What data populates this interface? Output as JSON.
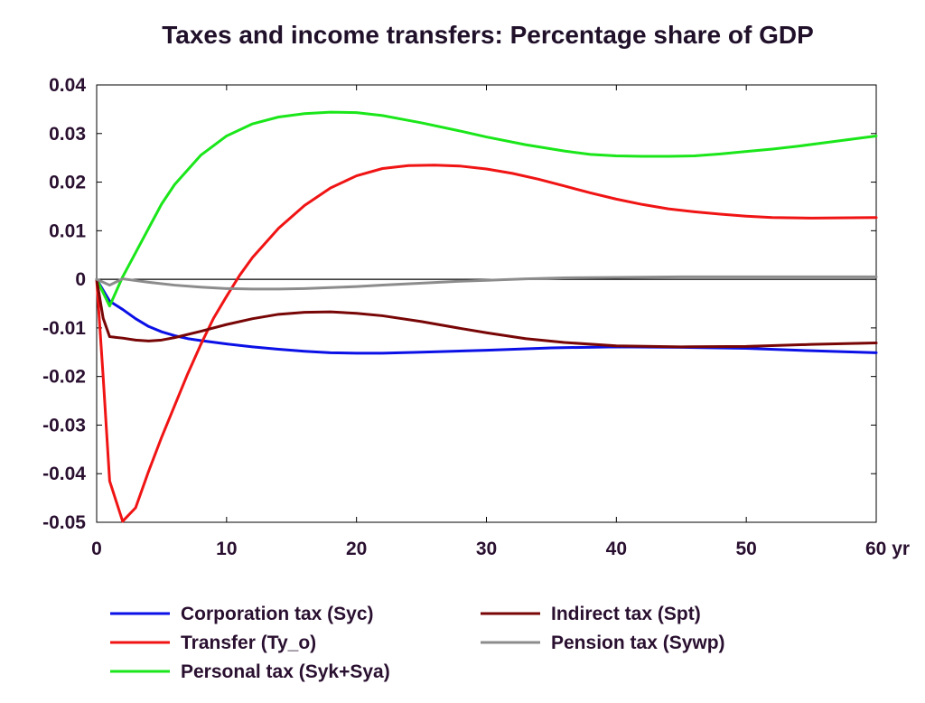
{
  "chart_data": {
    "type": "line",
    "title": "Taxes and income transfers: Percentage share of GDP",
    "xlabel": "",
    "ylabel": "",
    "x_unit_label": "yr",
    "xlim": [
      0,
      60
    ],
    "ylim": [
      -0.05,
      0.04
    ],
    "x_ticks": [
      0,
      10,
      20,
      30,
      40,
      50,
      60
    ],
    "x_tick_labels": [
      "0",
      "10",
      "20",
      "30",
      "40",
      "50",
      "60 yr"
    ],
    "y_ticks": [
      0.04,
      0.03,
      0.02,
      0.01,
      0,
      -0.01,
      -0.02,
      -0.03,
      -0.04,
      -0.05
    ],
    "y_tick_labels": [
      "0.04",
      "0.03",
      "0.02",
      "0.01",
      "0",
      "-0.01",
      "-0.02",
      "-0.03",
      "-0.04",
      "-0.05"
    ],
    "grid": false,
    "zero_line": true,
    "legend_position": "bottom",
    "series": [
      {
        "name": "Corporation tax (Syc)",
        "color": "#0a10e6",
        "x": [
          0,
          1,
          2,
          3,
          4,
          5,
          6,
          7,
          8,
          10,
          12,
          14,
          16,
          18,
          20,
          22,
          25,
          30,
          35,
          40,
          45,
          50,
          55,
          60
        ],
        "y": [
          0,
          -0.0045,
          -0.0062,
          -0.0081,
          -0.0097,
          -0.0108,
          -0.0116,
          -0.0122,
          -0.0126,
          -0.0133,
          -0.0139,
          -0.0144,
          -0.0148,
          -0.0151,
          -0.0152,
          -0.0152,
          -0.015,
          -0.0146,
          -0.0141,
          -0.0139,
          -0.014,
          -0.0142,
          -0.0147,
          -0.0151
        ]
      },
      {
        "name": "Transfer (Ty_o)",
        "color": "#f01414",
        "x": [
          0,
          0.5,
          1,
          2,
          3,
          4,
          5,
          6,
          7,
          8,
          9,
          10,
          11,
          12,
          14,
          16,
          18,
          20,
          22,
          24,
          26,
          28,
          30,
          32,
          34,
          36,
          38,
          40,
          42,
          44,
          46,
          48,
          50,
          52,
          55,
          60
        ],
        "y": [
          0,
          -0.02,
          -0.0415,
          -0.0498,
          -0.047,
          -0.0395,
          -0.0325,
          -0.026,
          -0.0195,
          -0.0135,
          -0.008,
          -0.0035,
          0.0008,
          0.0045,
          0.0105,
          0.0152,
          0.0188,
          0.0213,
          0.0228,
          0.0234,
          0.0235,
          0.0233,
          0.0227,
          0.0218,
          0.0206,
          0.0192,
          0.0178,
          0.0165,
          0.0154,
          0.0145,
          0.0139,
          0.0134,
          0.013,
          0.0127,
          0.0126,
          0.0127
        ]
      },
      {
        "name": "Personal tax (Syk+Sya)",
        "color": "#1ae61a",
        "x": [
          0,
          1,
          2,
          3,
          4,
          5,
          6,
          8,
          10,
          12,
          14,
          16,
          18,
          20,
          22,
          25,
          28,
          30,
          33,
          36,
          38,
          40,
          42,
          44,
          46,
          48,
          50,
          52,
          54,
          56,
          58,
          60
        ],
        "y": [
          0,
          -0.0055,
          0.0005,
          0.0055,
          0.0105,
          0.0155,
          0.0195,
          0.0255,
          0.0295,
          0.032,
          0.0334,
          0.0341,
          0.0344,
          0.0343,
          0.0337,
          0.0322,
          0.0305,
          0.0293,
          0.0277,
          0.0264,
          0.0257,
          0.0254,
          0.0253,
          0.0253,
          0.0254,
          0.0258,
          0.0263,
          0.0268,
          0.0274,
          0.0281,
          0.0288,
          0.0295
        ]
      },
      {
        "name": "Indirect tax (Spt)",
        "color": "#780606",
        "x": [
          0,
          0.5,
          1,
          2,
          3,
          4,
          5,
          6,
          8,
          10,
          12,
          14,
          16,
          18,
          20,
          22,
          25,
          28,
          30,
          33,
          36,
          40,
          45,
          50,
          55,
          60
        ],
        "y": [
          0,
          -0.008,
          -0.0118,
          -0.0121,
          -0.0125,
          -0.0127,
          -0.0125,
          -0.012,
          -0.0107,
          -0.0093,
          -0.0081,
          -0.0072,
          -0.0068,
          -0.0067,
          -0.007,
          -0.0075,
          -0.0087,
          -0.0101,
          -0.011,
          -0.0122,
          -0.013,
          -0.0137,
          -0.0139,
          -0.0138,
          -0.0134,
          -0.0131
        ]
      },
      {
        "name": "Pension tax (Sywp)",
        "color": "#8c8c8c",
        "x": [
          0,
          1,
          2,
          4,
          6,
          8,
          10,
          12,
          14,
          16,
          18,
          20,
          22,
          25,
          28,
          30,
          33,
          36,
          40,
          45,
          50,
          55,
          60
        ],
        "y": [
          0,
          -0.0012,
          0.0001,
          -0.0006,
          -0.0012,
          -0.0016,
          -0.0019,
          -0.002,
          -0.002,
          -0.0019,
          -0.0017,
          -0.0015,
          -0.0012,
          -0.0008,
          -0.0004,
          -0.0002,
          0.0001,
          0.0003,
          0.0004,
          0.0005,
          0.0005,
          0.0005,
          0.0005
        ]
      }
    ]
  }
}
